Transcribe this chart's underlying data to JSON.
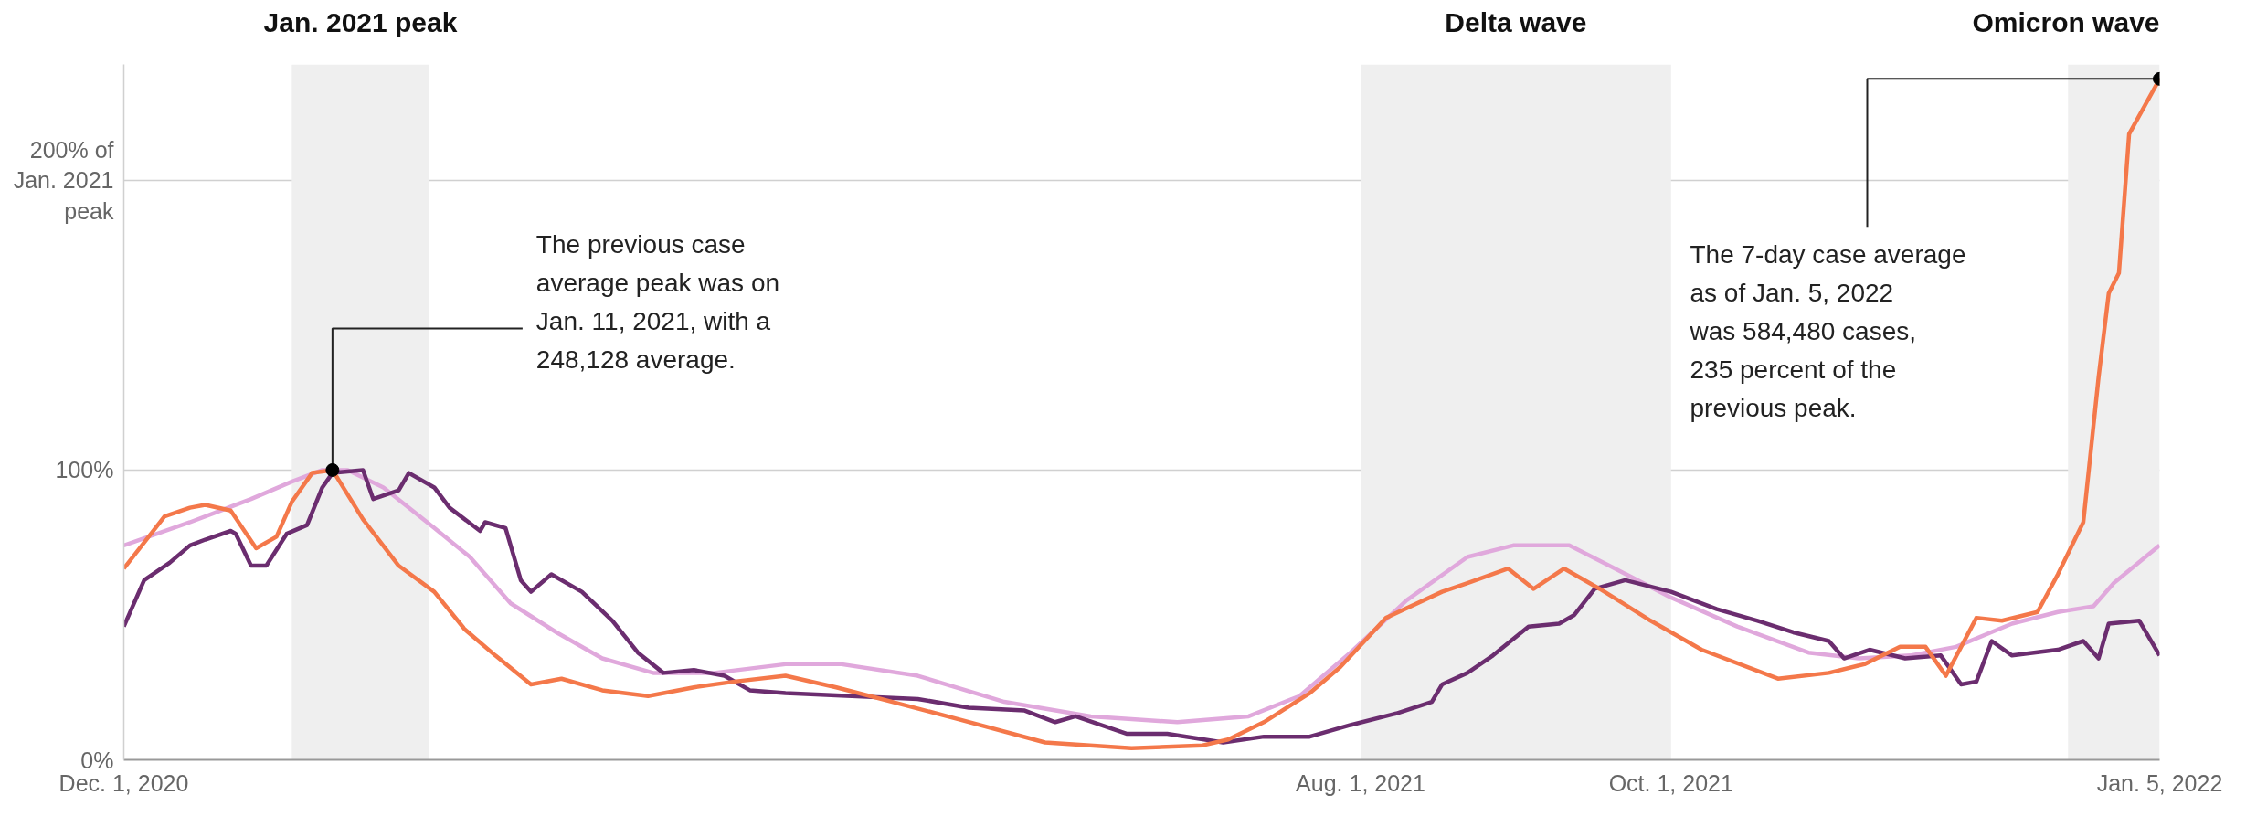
{
  "chart_data": {
    "type": "line",
    "xlim": [
      "2020-12-01",
      "2022-01-05"
    ],
    "ylim": [
      0,
      240
    ],
    "xticks": [
      {
        "value": "2020-12-01",
        "label": "Dec. 1, 2020"
      },
      {
        "value": "2021-08-01",
        "label": "Aug. 1, 2021"
      },
      {
        "value": "2021-10-01",
        "label": "Oct. 1, 2021"
      },
      {
        "value": "2022-01-05",
        "label": "Jan. 5, 2022"
      }
    ],
    "yticks": [
      {
        "value": 0,
        "label": "0%"
      },
      {
        "value": 100,
        "label": "100%"
      },
      {
        "value": 200,
        "label": "200% of\nJan. 2021\npeak"
      }
    ],
    "grid": "y",
    "line_style": "solid",
    "marker": "none",
    "bands": [
      {
        "axis": "x",
        "from": "2021-01-03",
        "to": "2021-01-30",
        "label": "Jan. 2021 peak",
        "color": "#efefef"
      },
      {
        "axis": "x",
        "from": "2021-08-01",
        "to": "2021-10-01",
        "label": "Delta wave",
        "color": "#efefef"
      },
      {
        "axis": "x",
        "from": "2021-12-18",
        "to": "2022-01-05",
        "label": "Omicron wave",
        "color": "#efefef"
      }
    ],
    "annotations": [
      {
        "text": "The previous case\naverage peak was on\nJan. 11, 2021, with a\n248,128 average.",
        "x": "2021-01-11",
        "y": 100
      },
      {
        "text": "The 7-day case average\nas of Jan. 5, 2022\nwas 584,480 cases,\n235 percent of the\nprevious peak.",
        "x": "2022-01-05",
        "y": 235
      }
    ],
    "series": [
      {
        "color": "#e0a8dc",
        "x": [
          "2020-12-01",
          "2020-12-14",
          "2020-12-26",
          "2021-01-03",
          "2021-01-09",
          "2021-01-14",
          "2021-01-21",
          "2021-01-31",
          "2021-02-07",
          "2021-02-15",
          "2021-02-24",
          "2021-03-05",
          "2021-03-15",
          "2021-03-27",
          "2021-04-10",
          "2021-04-21",
          "2021-05-06",
          "2021-05-23",
          "2021-06-09",
          "2021-06-26",
          "2021-07-10",
          "2021-07-20",
          "2021-07-30",
          "2021-08-10",
          "2021-08-22",
          "2021-08-31",
          "2021-09-11",
          "2021-09-20",
          "2021-10-01",
          "2021-10-14",
          "2021-10-28",
          "2021-11-07",
          "2021-11-17",
          "2021-11-26",
          "2021-12-07",
          "2021-12-16",
          "2021-12-23",
          "2021-12-27",
          "2022-01-05"
        ],
        "values": [
          74,
          82,
          90,
          96,
          100,
          100,
          94,
          80,
          70,
          54,
          44,
          35,
          30,
          30,
          33,
          33,
          29,
          20,
          15,
          13,
          15,
          22,
          37,
          55,
          70,
          74,
          74,
          66,
          56,
          46,
          37,
          35,
          36,
          39,
          47,
          51,
          53,
          61,
          74
        ]
      },
      {
        "color": "#6b2d6f",
        "x": [
          "2020-12-01",
          "2020-12-05",
          "2020-12-10",
          "2020-12-14",
          "2020-12-17",
          "2020-12-22",
          "2020-12-23",
          "2020-12-26",
          "2020-12-29",
          "2021-01-02",
          "2021-01-06",
          "2021-01-09",
          "2021-01-11",
          "2021-01-17",
          "2021-01-19",
          "2021-01-24",
          "2021-01-26",
          "2021-01-31",
          "2021-02-03",
          "2021-02-09",
          "2021-02-10",
          "2021-02-14",
          "2021-02-17",
          "2021-02-19",
          "2021-02-23",
          "2021-03-01",
          "2021-03-07",
          "2021-03-12",
          "2021-03-17",
          "2021-03-23",
          "2021-03-29",
          "2021-04-03",
          "2021-04-10",
          "2021-04-23",
          "2021-05-06",
          "2021-05-16",
          "2021-05-27",
          "2021-06-02",
          "2021-06-06",
          "2021-06-16",
          "2021-06-24",
          "2021-07-05",
          "2021-07-13",
          "2021-07-22",
          "2021-07-30",
          "2021-08-08",
          "2021-08-15",
          "2021-08-17",
          "2021-08-22",
          "2021-08-27",
          "2021-09-03",
          "2021-09-09",
          "2021-09-12",
          "2021-09-16",
          "2021-09-22",
          "2021-10-01",
          "2021-10-10",
          "2021-10-18",
          "2021-10-25",
          "2021-11-01",
          "2021-11-04",
          "2021-11-09",
          "2021-11-16",
          "2021-11-23",
          "2021-11-27",
          "2021-11-30",
          "2021-12-03",
          "2021-12-07",
          "2021-12-16",
          "2021-12-21",
          "2021-12-24",
          "2021-12-26",
          "2022-01-01",
          "2022-01-05"
        ],
        "values": [
          46,
          62,
          68,
          74,
          76,
          79,
          78,
          67,
          67,
          78,
          81,
          94,
          99,
          100,
          90,
          93,
          99,
          94,
          87,
          79,
          82,
          80,
          62,
          58,
          64,
          58,
          48,
          37,
          30,
          31,
          29,
          24,
          23,
          22,
          21,
          18,
          17,
          13,
          15,
          9,
          9,
          6,
          8,
          8,
          12,
          16,
          20,
          26,
          30,
          36,
          46,
          47,
          50,
          59,
          62,
          58,
          52,
          48,
          44,
          41,
          35,
          38,
          35,
          36,
          26,
          27,
          41,
          36,
          38,
          41,
          35,
          47,
          48,
          36
        ]
      },
      {
        "color": "#f4784a",
        "x": [
          "2020-12-01",
          "2020-12-09",
          "2020-12-14",
          "2020-12-17",
          "2020-12-22",
          "2020-12-27",
          "2020-12-31",
          "2021-01-03",
          "2021-01-07",
          "2021-01-11",
          "2021-01-17",
          "2021-01-24",
          "2021-01-31",
          "2021-02-06",
          "2021-02-12",
          "2021-02-19",
          "2021-02-25",
          "2021-03-05",
          "2021-03-14",
          "2021-03-23",
          "2021-03-31",
          "2021-04-10",
          "2021-04-20",
          "2021-05-01",
          "2021-05-14",
          "2021-05-31",
          "2021-06-17",
          "2021-07-01",
          "2021-07-06",
          "2021-07-13",
          "2021-07-22",
          "2021-07-28",
          "2021-08-06",
          "2021-08-17",
          "2021-08-22",
          "2021-08-30",
          "2021-09-04",
          "2021-09-10",
          "2021-09-17",
          "2021-09-27",
          "2021-10-07",
          "2021-10-22",
          "2021-11-01",
          "2021-11-08",
          "2021-11-15",
          "2021-11-20",
          "2021-11-24",
          "2021-11-30",
          "2021-12-05",
          "2021-12-12",
          "2021-12-16",
          "2021-12-21",
          "2021-12-24",
          "2021-12-26",
          "2021-12-28",
          "2021-12-30",
          "2022-01-05"
        ],
        "values": [
          66,
          84,
          87,
          88,
          86,
          73,
          77,
          89,
          99,
          100,
          83,
          67,
          58,
          45,
          36,
          26,
          28,
          24,
          22,
          25,
          27,
          29,
          25,
          20,
          14,
          6,
          4,
          5,
          7,
          13,
          23,
          32,
          49,
          58,
          61,
          66,
          59,
          66,
          59,
          48,
          38,
          28,
          30,
          33,
          39,
          39,
          29,
          49,
          48,
          51,
          64,
          82,
          132,
          161,
          168,
          216,
          235
        ]
      }
    ]
  }
}
